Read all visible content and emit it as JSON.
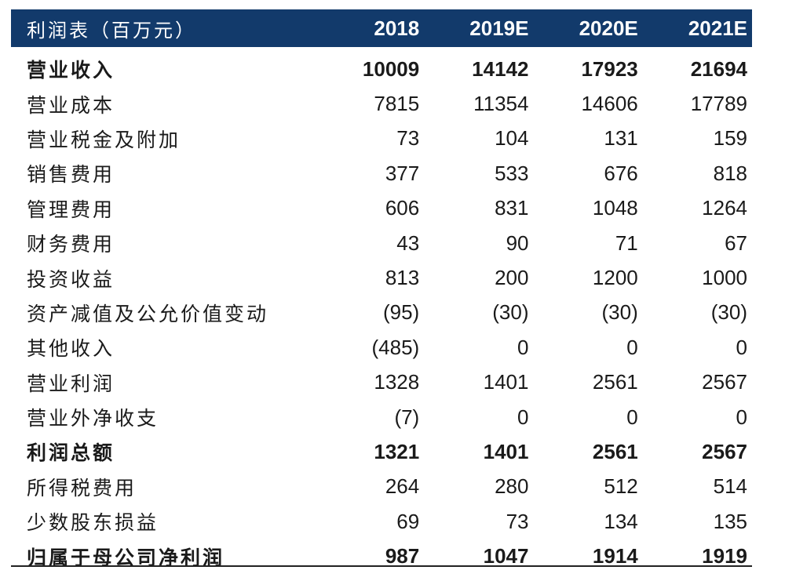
{
  "header": {
    "title": "利润表（百万元）",
    "years": [
      "2018",
      "2019E",
      "2020E",
      "2021E"
    ]
  },
  "rows": [
    {
      "label": "营业收入",
      "bold": true,
      "values": [
        "10009",
        "14142",
        "17923",
        "21694"
      ]
    },
    {
      "label": "营业成本",
      "bold": false,
      "values": [
        "7815",
        "11354",
        "14606",
        "17789"
      ]
    },
    {
      "label": "营业税金及附加",
      "bold": false,
      "values": [
        "73",
        "104",
        "131",
        "159"
      ]
    },
    {
      "label": "销售费用",
      "bold": false,
      "values": [
        "377",
        "533",
        "676",
        "818"
      ]
    },
    {
      "label": "管理费用",
      "bold": false,
      "values": [
        "606",
        "831",
        "1048",
        "1264"
      ]
    },
    {
      "label": "财务费用",
      "bold": false,
      "values": [
        "43",
        "90",
        "71",
        "67"
      ]
    },
    {
      "label": "投资收益",
      "bold": false,
      "values": [
        "813",
        "200",
        "1200",
        "1000"
      ]
    },
    {
      "label": "资产减值及公允价值变动",
      "bold": false,
      "values": [
        "(95)",
        "(30)",
        "(30)",
        "(30)"
      ]
    },
    {
      "label": "其他收入",
      "bold": false,
      "values": [
        "(485)",
        "0",
        "0",
        "0"
      ]
    },
    {
      "label": "营业利润",
      "bold": false,
      "values": [
        "1328",
        "1401",
        "2561",
        "2567"
      ]
    },
    {
      "label": "营业外净收支",
      "bold": false,
      "values": [
        "(7)",
        "0",
        "0",
        "0"
      ]
    },
    {
      "label": "利润总额",
      "bold": true,
      "values": [
        "1321",
        "1401",
        "2561",
        "2567"
      ]
    },
    {
      "label": "所得税费用",
      "bold": false,
      "values": [
        "264",
        "280",
        "512",
        "514"
      ]
    },
    {
      "label": "少数股东损益",
      "bold": false,
      "values": [
        "69",
        "73",
        "134",
        "135"
      ]
    },
    {
      "label": "归属于母公司净利润",
      "bold": true,
      "values": [
        "987",
        "1047",
        "1914",
        "1919"
      ]
    }
  ],
  "colors": {
    "header_bg": "#123a6b",
    "header_text": "#ffffff"
  }
}
